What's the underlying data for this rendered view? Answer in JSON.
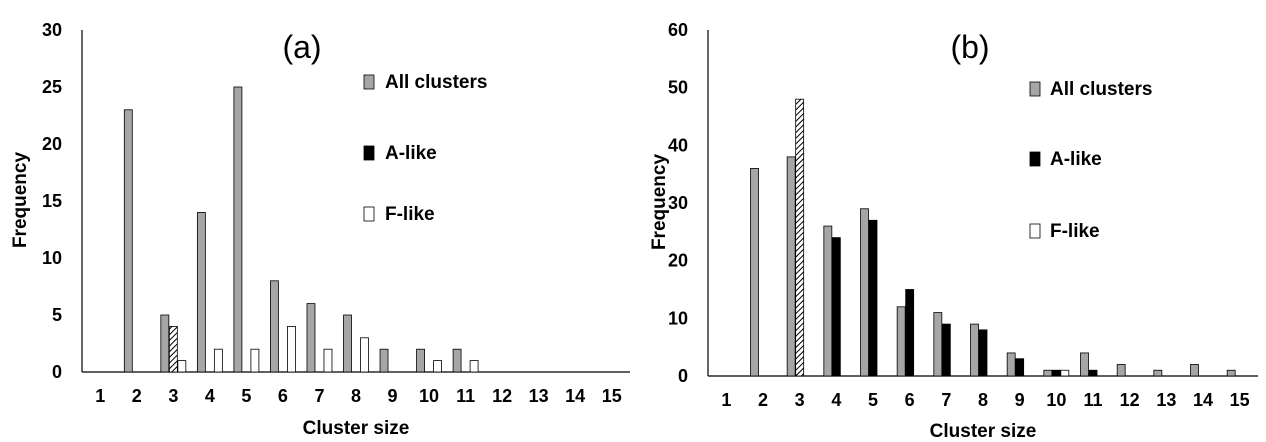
{
  "colors": {
    "all_clusters": "#a6a6a6",
    "a_like": "#000000",
    "f_like": "#ffffff",
    "hatched": "hatch"
  },
  "chart_data": [
    {
      "type": "bar",
      "panel_label": "(a)",
      "xlabel": "Cluster size",
      "ylabel": "Frequency",
      "ylim": [
        0,
        30
      ],
      "yticks": [
        "0",
        "5",
        "10",
        "15",
        "20",
        "25",
        "30"
      ],
      "categories": [
        "1",
        "2",
        "3",
        "4",
        "5",
        "6",
        "7",
        "8",
        "9",
        "10",
        "11",
        "12",
        "13",
        "14",
        "15"
      ],
      "legend": [
        "All clusters",
        "A-like",
        "F-like"
      ],
      "series": [
        {
          "name": "All clusters",
          "values": [
            0,
            23,
            5,
            14,
            25,
            8,
            6,
            5,
            2,
            2,
            2,
            0,
            0,
            0,
            0
          ]
        },
        {
          "name": "A-like",
          "values": [
            0,
            0,
            4,
            0,
            0,
            0,
            0,
            0,
            0,
            0,
            0,
            0,
            0,
            0,
            0
          ],
          "hatched": [
            3
          ]
        },
        {
          "name": "F-like",
          "values": [
            0,
            0,
            1,
            2,
            2,
            4,
            2,
            3,
            0,
            1,
            1,
            0,
            0,
            0,
            0
          ]
        }
      ]
    },
    {
      "type": "bar",
      "panel_label": "(b)",
      "xlabel": "Cluster size",
      "ylabel": "Frequency",
      "ylim": [
        0,
        60
      ],
      "yticks": [
        "0",
        "10",
        "20",
        "30",
        "40",
        "50",
        "60"
      ],
      "categories": [
        "1",
        "2",
        "3",
        "4",
        "5",
        "6",
        "7",
        "8",
        "9",
        "10",
        "11",
        "12",
        "13",
        "14",
        "15"
      ],
      "legend": [
        "All clusters",
        "A-like",
        "F-like"
      ],
      "series": [
        {
          "name": "All clusters",
          "values": [
            0,
            36,
            38,
            26,
            29,
            12,
            11,
            9,
            4,
            1,
            4,
            2,
            1,
            2,
            1
          ]
        },
        {
          "name": "A-like",
          "values": [
            0,
            0,
            48,
            24,
            27,
            15,
            9,
            8,
            3,
            1,
            1,
            0,
            0,
            0,
            0
          ],
          "hatched": [
            3
          ]
        },
        {
          "name": "F-like",
          "values": [
            0,
            0,
            0,
            0,
            0,
            0,
            0,
            0,
            0,
            1,
            0,
            0,
            0,
            0,
            0
          ]
        }
      ]
    }
  ]
}
